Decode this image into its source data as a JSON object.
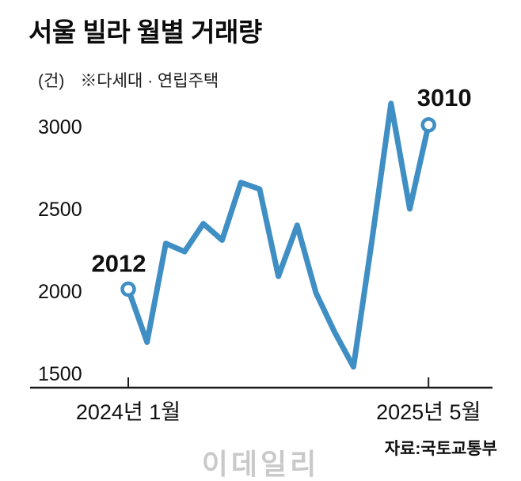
{
  "title": "서울 빌라 월별 거래량",
  "unit_label": "(건)",
  "note": "※다세대 · 연립주택",
  "watermark": "이데일리",
  "source": "자료:국토교통부",
  "colors": {
    "line": "#3f8ec4",
    "axis": "#1a1a1a",
    "text": "#101010",
    "watermark": "#c9c9c9"
  },
  "chart_data": {
    "type": "line",
    "title": "서울 빌라 월별 거래량",
    "unit": "(건)",
    "note": "※다세대 · 연립주택",
    "x": [
      "2024-01",
      "2024-02",
      "2024-03",
      "2024-04",
      "2024-05",
      "2024-06",
      "2024-07",
      "2024-08",
      "2024-09",
      "2024-10",
      "2024-11",
      "2024-12",
      "2025-01",
      "2025-02",
      "2025-03",
      "2025-04",
      "2025-05"
    ],
    "values": [
      2012,
      1690,
      2290,
      2240,
      2410,
      2310,
      2660,
      2620,
      2090,
      2400,
      1990,
      1750,
      1540,
      2320,
      3140,
      2500,
      3010
    ],
    "yticks": [
      1500,
      2000,
      2500,
      3000
    ],
    "ylim": [
      1400,
      3250
    ],
    "grid": false,
    "legend": "none",
    "x_axis_labels": [
      {
        "index": 0,
        "label": "2024년 1월"
      },
      {
        "index": 16,
        "label": "2025년 5월"
      }
    ],
    "annotations": [
      {
        "index": 0,
        "text": "2012"
      },
      {
        "index": 16,
        "text": "3010"
      }
    ],
    "markers": [
      0,
      16
    ],
    "source": "자료:국토교통부"
  }
}
